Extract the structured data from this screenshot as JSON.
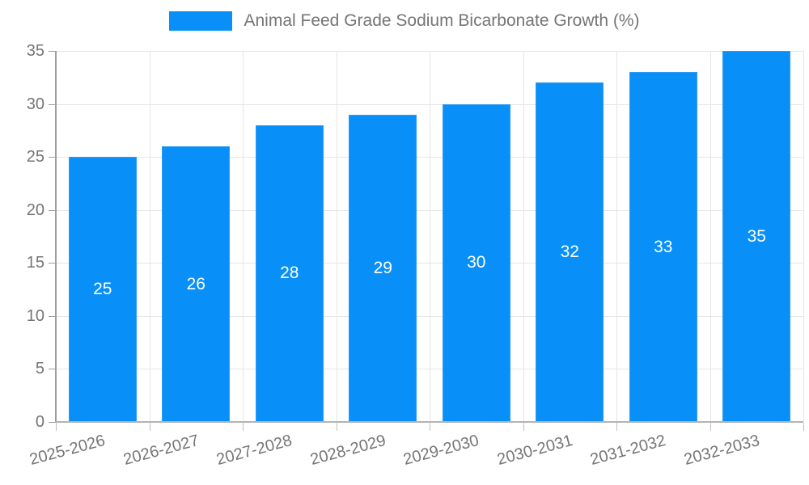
{
  "legend": {
    "label": "Animal Feed Grade Sodium Bicarbonate Growth (%)",
    "swatch_color": "#0890f8"
  },
  "chart_data": {
    "type": "bar",
    "title": "",
    "xlabel": "",
    "ylabel": "",
    "categories": [
      "2025-2026",
      "2026-2027",
      "2027-2028",
      "2028-2029",
      "2029-2030",
      "2030-2031",
      "2031-2032",
      "2032-2033"
    ],
    "values": [
      25,
      26,
      28,
      29,
      30,
      32,
      33,
      35
    ],
    "series_name": "Animal Feed Grade Sodium Bicarbonate Growth (%)",
    "ylim": [
      0,
      35
    ],
    "ytick_step": 5,
    "yticks": [
      0,
      5,
      10,
      15,
      20,
      25,
      30,
      35
    ],
    "grid": true,
    "legend_position": "top",
    "bar_color": "#0890f8",
    "bar_border_color": "#2e9cf5",
    "value_label_color": "#ffffff",
    "axis_text_color": "#757575",
    "grid_color": "#e6e6e6",
    "axis_line_color": "#9e9e9e",
    "x_label_rotation_deg": -15
  }
}
